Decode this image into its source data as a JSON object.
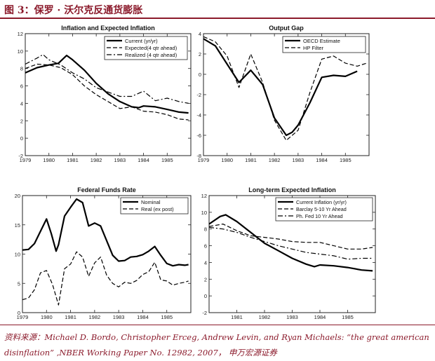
{
  "figure": {
    "title": "图 3：保罗 · 沃尔克反通货膨胀",
    "source_line1": "资料来源：Michael D. Bordo, Christopher Erceg, Andrew Levin, and Ryan Michaels:   “the great american",
    "source_line2": "disinflation” ,NBER Working Paper No. 12982, 2007，  申万宏源证券",
    "accent_color": "#8b1a2b"
  },
  "chart_data": [
    {
      "type": "line",
      "title": "Inflation and Expected Inflation",
      "legend_position": "top-right",
      "xlim": [
        1979,
        1986
      ],
      "ylim": [
        -2,
        12
      ],
      "xticks": [
        1979,
        1980,
        1981,
        1982,
        1983,
        1984,
        1985
      ],
      "yticks": [
        -2,
        0,
        2,
        4,
        6,
        8,
        10,
        12
      ],
      "series": [
        {
          "name": "Current (yr/yr)",
          "style": "solid",
          "x": [
            1979,
            1979.5,
            1980,
            1980.4,
            1980.75,
            1981,
            1981.5,
            1982,
            1982.5,
            1983,
            1983.5,
            1983.8,
            1984,
            1984.5,
            1985,
            1985.5,
            1985.9
          ],
          "y": [
            7.5,
            8.1,
            8.4,
            8.6,
            9.5,
            9.0,
            7.8,
            6.3,
            5.1,
            4.2,
            3.6,
            3.5,
            3.7,
            3.6,
            3.3,
            3.0,
            2.9
          ]
        },
        {
          "name": "Expected(4 qtr ahead)",
          "style": "dashed",
          "x": [
            1979,
            1979.5,
            1980,
            1980.5,
            1981,
            1981.5,
            1982,
            1982.5,
            1983,
            1983.5,
            1984,
            1984.5,
            1985,
            1985.5,
            1985.9
          ],
          "y": [
            8.0,
            8.5,
            8.4,
            8.1,
            7.3,
            6.0,
            5.0,
            4.2,
            3.4,
            3.6,
            3.1,
            3.0,
            2.7,
            2.2,
            2.1
          ]
        },
        {
          "name": "Realized (4 qtr ahead)",
          "style": "dashdot",
          "x": [
            1979,
            1979.5,
            1979.75,
            1980,
            1980.5,
            1981,
            1981.5,
            1982,
            1982.5,
            1983,
            1983.5,
            1984,
            1984.5,
            1985,
            1985.5,
            1985.9
          ],
          "y": [
            8.5,
            9.2,
            9.6,
            9.0,
            8.4,
            7.5,
            6.8,
            5.8,
            5.3,
            4.8,
            4.8,
            5.4,
            4.3,
            4.6,
            4.2,
            4.0
          ]
        }
      ]
    },
    {
      "type": "line",
      "title": "Output Gap",
      "legend_position": "top-right",
      "xlim": [
        1979,
        1986
      ],
      "ylim": [
        -8,
        4
      ],
      "xticks": [
        1979,
        1980,
        1981,
        1982,
        1983,
        1984,
        1985
      ],
      "yticks": [
        -8,
        -6,
        -4,
        -2,
        0,
        2,
        4
      ],
      "series": [
        {
          "name": "OECD Estimate",
          "style": "solid",
          "x": [
            1979,
            1979.5,
            1980,
            1980.5,
            1981,
            1981.5,
            1982,
            1982.5,
            1982.75,
            1983,
            1983.5,
            1984,
            1984.5,
            1985,
            1985.5
          ],
          "y": [
            3.5,
            2.8,
            1.0,
            -0.8,
            0.4,
            -1.0,
            -4.3,
            -6.0,
            -5.7,
            -5.0,
            -2.8,
            -0.3,
            -0.1,
            -0.2,
            0.3
          ]
        },
        {
          "name": "HP Filter",
          "style": "dashed",
          "x": [
            1979,
            1979.5,
            1980,
            1980.5,
            1981,
            1981.5,
            1982,
            1982.5,
            1983,
            1983.5,
            1984,
            1984.5,
            1985,
            1985.5,
            1985.9
          ],
          "y": [
            3.7,
            3.2,
            1.8,
            -1.3,
            2.0,
            -0.8,
            -4.5,
            -6.5,
            -5.5,
            -1.8,
            1.5,
            1.8,
            1.1,
            0.8,
            1.1
          ]
        }
      ]
    },
    {
      "type": "line",
      "title": "Federal Funds Rate",
      "legend_position": "top-right",
      "xlim": [
        1979,
        1986
      ],
      "ylim": [
        0,
        20
      ],
      "xticks": [
        1979,
        1980,
        1981,
        1982,
        1983,
        1984,
        1985
      ],
      "yticks": [
        0,
        5,
        10,
        15,
        20
      ],
      "series": [
        {
          "name": "Nominal",
          "style": "solid",
          "x": [
            1979,
            1979.25,
            1979.5,
            1980,
            1980.2,
            1980.4,
            1980.5,
            1980.75,
            1981,
            1981.25,
            1981.5,
            1981.75,
            1982,
            1982.25,
            1982.5,
            1982.75,
            1983,
            1983.25,
            1983.5,
            1983.75,
            1984,
            1984.25,
            1984.5,
            1984.75,
            1985,
            1985.25,
            1985.5,
            1985.75,
            1985.9
          ],
          "y": [
            10.7,
            10.8,
            11.8,
            16.0,
            13.5,
            10.5,
            11.6,
            16.5,
            18.0,
            19.4,
            18.8,
            14.8,
            15.3,
            14.8,
            12.3,
            9.8,
            8.8,
            8.9,
            9.5,
            9.6,
            9.9,
            10.5,
            11.3,
            9.8,
            8.4,
            8.0,
            8.2,
            8.1,
            8.2
          ]
        },
        {
          "name": "Real (ex post)",
          "style": "dashed",
          "x": [
            1979,
            1979.25,
            1979.5,
            1979.75,
            1980,
            1980.25,
            1980.5,
            1980.75,
            1981,
            1981.25,
            1981.5,
            1981.75,
            1982,
            1982.25,
            1982.5,
            1982.75,
            1983,
            1983.25,
            1983.5,
            1983.75,
            1984,
            1984.25,
            1984.5,
            1984.75,
            1985,
            1985.25,
            1985.5,
            1985.75,
            1985.9
          ],
          "y": [
            2.2,
            2.5,
            3.9,
            6.8,
            7.2,
            4.8,
            1.3,
            7.5,
            8.3,
            10.4,
            9.5,
            6.2,
            8.5,
            9.5,
            6.4,
            5.0,
            4.4,
            5.2,
            5.0,
            5.5,
            6.5,
            7.0,
            8.6,
            5.6,
            5.4,
            4.7,
            5.0,
            5.2,
            5.4
          ]
        }
      ]
    },
    {
      "type": "line",
      "title": "Long-term Expected Inflation",
      "legend_position": "top-right",
      "xlim": [
        1980,
        1986
      ],
      "ylim": [
        -2,
        12
      ],
      "xticks": [
        1981,
        1982,
        1983,
        1984,
        1985
      ],
      "yticks": [
        -2,
        0,
        2,
        4,
        6,
        8,
        10,
        12
      ],
      "series": [
        {
          "name": "Current Inflation (yr/yr)",
          "style": "solid",
          "x": [
            1980,
            1980.4,
            1980.6,
            1981,
            1981.5,
            1982,
            1982.5,
            1983,
            1983.5,
            1983.8,
            1984,
            1984.5,
            1985,
            1985.5,
            1985.9
          ],
          "y": [
            8.6,
            9.5,
            9.7,
            8.9,
            7.6,
            6.3,
            5.4,
            4.5,
            3.8,
            3.5,
            3.7,
            3.6,
            3.4,
            3.1,
            3.0
          ]
        },
        {
          "name": "Barclay 5-10 Yr Ahead",
          "style": "dashed",
          "x": [
            1980,
            1980.5,
            1981,
            1981.5,
            1982,
            1982.5,
            1983,
            1983.5,
            1984,
            1984.5,
            1985,
            1985.5,
            1985.9
          ],
          "y": [
            8.3,
            8.6,
            7.8,
            7.2,
            7.0,
            6.8,
            6.5,
            6.4,
            6.4,
            6.0,
            5.6,
            5.6,
            5.8
          ]
        },
        {
          "name": "Ph. Fed 10 Yr Ahead",
          "style": "dashdot",
          "x": [
            1980,
            1980.5,
            1981,
            1981.5,
            1982,
            1982.5,
            1983,
            1983.5,
            1984,
            1984.5,
            1985,
            1985.5,
            1985.9
          ],
          "y": [
            8.2,
            8.0,
            7.6,
            7.0,
            6.5,
            6.0,
            5.6,
            5.2,
            5.0,
            4.8,
            4.4,
            4.5,
            4.5
          ]
        }
      ]
    }
  ]
}
